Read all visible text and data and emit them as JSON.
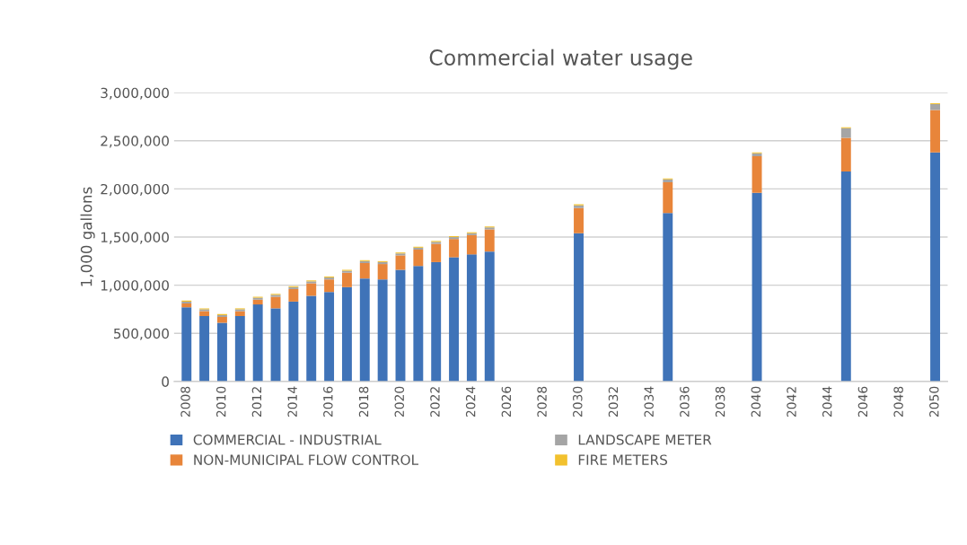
{
  "chart_data": {
    "type": "bar",
    "title": "Commercial water usage",
    "ylabel": "1,000 gallons",
    "stacked": true,
    "categories": [
      "2008",
      null,
      "2010",
      null,
      "2012",
      null,
      "2014",
      null,
      "2016",
      null,
      "2018",
      null,
      "2020",
      null,
      "2022",
      null,
      "2024",
      null,
      "2026",
      null,
      "2028",
      null,
      "2030",
      null,
      "2032",
      null,
      "2034",
      null,
      "2036",
      null,
      "2038",
      null,
      "2040",
      null,
      "2042",
      null,
      "2044",
      null,
      "2046",
      null,
      "2048",
      null,
      "2050"
    ],
    "series": [
      {
        "name": "COMMERCIAL - INDUSTRIAL",
        "color": "#3f73b8",
        "values": [
          770000,
          680000,
          610000,
          680000,
          800000,
          760000,
          830000,
          890000,
          930000,
          980000,
          1070000,
          1060000,
          1160000,
          1200000,
          1240000,
          1290000,
          1320000,
          1350000,
          null,
          null,
          null,
          null,
          1540000,
          null,
          null,
          null,
          null,
          1750000,
          null,
          null,
          null,
          null,
          1960000,
          null,
          null,
          null,
          null,
          2180000,
          null,
          null,
          null,
          null,
          2380000
        ]
      },
      {
        "name": "NON-MUNICIPAL FLOW CONTROL",
        "color": "#e8853a",
        "values": [
          40000,
          50000,
          60000,
          50000,
          50000,
          120000,
          130000,
          130000,
          130000,
          150000,
          160000,
          160000,
          150000,
          170000,
          190000,
          190000,
          200000,
          230000,
          null,
          null,
          null,
          null,
          260000,
          null,
          null,
          null,
          null,
          320000,
          null,
          null,
          null,
          null,
          380000,
          null,
          null,
          null,
          null,
          350000,
          null,
          null,
          null,
          null,
          440000
        ]
      },
      {
        "name": "LANDSCAPE METER",
        "color": "#a5a5a5",
        "values": [
          20000,
          20000,
          20000,
          20000,
          20000,
          20000,
          20000,
          20000,
          20000,
          20000,
          20000,
          20000,
          20000,
          20000,
          20000,
          20000,
          20000,
          20000,
          null,
          null,
          null,
          null,
          30000,
          null,
          null,
          null,
          null,
          30000,
          null,
          null,
          null,
          null,
          30000,
          null,
          null,
          null,
          null,
          100000,
          null,
          null,
          null,
          null,
          60000
        ]
      },
      {
        "name": "FIRE METERS",
        "color": "#f2c12e",
        "values": [
          10000,
          10000,
          10000,
          10000,
          10000,
          10000,
          10000,
          10000,
          10000,
          10000,
          10000,
          10000,
          10000,
          10000,
          10000,
          10000,
          10000,
          10000,
          null,
          null,
          null,
          null,
          10000,
          null,
          null,
          null,
          null,
          10000,
          null,
          null,
          null,
          null,
          10000,
          null,
          null,
          null,
          null,
          10000,
          null,
          null,
          null,
          null,
          10000
        ]
      }
    ],
    "ylim": [
      0,
      3000000
    ],
    "yticks": [
      0,
      {
        "value": 500000,
        "label": "500,000"
      },
      {
        "value": 1000000,
        "label": "1,000,000"
      },
      {
        "value": 1500000,
        "label": "1,500,000"
      },
      {
        "value": 2000000,
        "label": "2,000,000"
      },
      {
        "value": 2500000,
        "label": "2,500,000"
      },
      {
        "value": 3000000,
        "label": "3,000,000"
      }
    ],
    "grid": "y",
    "legend": "bottom"
  }
}
